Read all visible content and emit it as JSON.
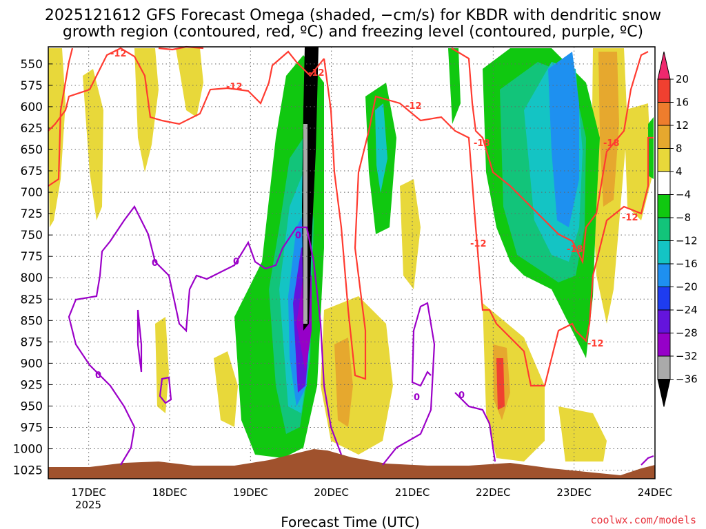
{
  "chart_data": {
    "type": "heatmap",
    "title_line1": "2025121612 GFS Forecast Omega (shaded, −cm/s) for KBDR with dendritic snow",
    "title_line2": "growth region (contoured, red, ºC) and freezing level (contoured, purple, ºC)",
    "xlabel": "Forecast Time (UTC)",
    "x_ticks": [
      "17DEC",
      "18DEC",
      "19DEC",
      "20DEC",
      "21DEC",
      "22DEC",
      "23DEC",
      "24DEC"
    ],
    "x_year": "2025",
    "x_range_days": [
      16.5,
      24.0
    ],
    "y_ticks": [
      550,
      575,
      600,
      625,
      650,
      675,
      700,
      725,
      750,
      775,
      800,
      825,
      850,
      875,
      900,
      925,
      950,
      975,
      1000,
      1025
    ],
    "y_range_hpa": [
      530,
      1035
    ],
    "colorbar": {
      "levels": [
        20,
        16,
        12,
        8,
        4,
        -4,
        -8,
        -12,
        -16,
        -20,
        -24,
        -28,
        -32,
        -36
      ],
      "labels": [
        "20",
        "16",
        "12",
        "8",
        "4",
        "−4",
        "−8",
        "−12",
        "−16",
        "−20",
        "−24",
        "−28",
        "−32",
        "−36"
      ],
      "colors": [
        "#f0286e",
        "#f04030",
        "#ee7d2d",
        "#e6a82e",
        "#e8d83a",
        "#ffffff",
        "#10c810",
        "#12c47a",
        "#14c4c4",
        "#1e90f0",
        "#1e3cf0",
        "#6414dc",
        "#9600c8",
        "#aaaaaa",
        "#000000"
      ]
    },
    "contour_labels": {
      "red": [
        "-12",
        "-12",
        "-12",
        "-18",
        "-18",
        "-12",
        "-12",
        "-18",
        "-12",
        "-12"
      ],
      "purple": [
        "0",
        "0",
        "0",
        "0",
        "0",
        "0"
      ]
    },
    "series": [
      {
        "name": "shaded omega",
        "units": "-cm/s"
      },
      {
        "name": "dendritic snow growth region (red, -12 to -18 °C)"
      },
      {
        "name": "freezing level (purple, 0 °C)"
      }
    ]
  },
  "credit": "coolwx.com/models"
}
